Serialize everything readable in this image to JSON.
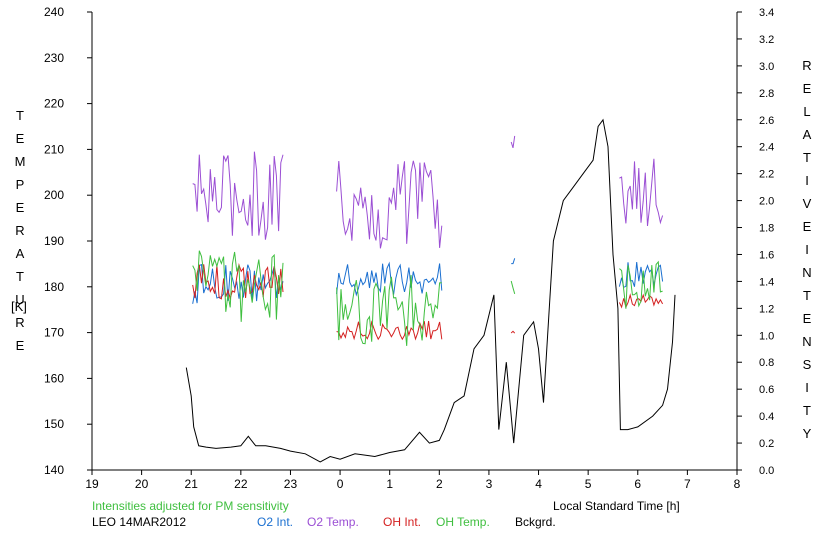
{
  "chart_data": {
    "type": "line",
    "left_axis_label": "TEMPERATURE",
    "left_axis_unit": "[K]",
    "right_axis_label": "RELATIVE INTENSITY",
    "x_axis_label": "Local Standard Time [h]",
    "note": "Intensities adjusted for PM sensitivity",
    "station_date": "LEO 14MAR2012",
    "x_ticks": [
      "19",
      "20",
      "21",
      "22",
      "23",
      "0",
      "1",
      "2",
      "3",
      "4",
      "5",
      "6",
      "7",
      "8"
    ],
    "y_left_ticks": [
      140,
      150,
      160,
      170,
      180,
      190,
      200,
      210,
      220,
      230,
      240
    ],
    "y_right_ticks": [
      "0.0",
      "0.2",
      "0.4",
      "0.6",
      "0.8",
      "1.0",
      "1.2",
      "1.4",
      "1.6",
      "1.8",
      "2.0",
      "2.2",
      "2.4",
      "2.6",
      "2.8",
      "3.0",
      "3.2",
      "3.4"
    ],
    "xlim": [
      19,
      32
    ],
    "ylim_left": [
      140,
      240
    ],
    "ylim_right": [
      0.0,
      3.4
    ],
    "grid": false,
    "legend": [
      {
        "name": "O2 Int.",
        "color": "#1a6fd0"
      },
      {
        "name": "O2 Temp.",
        "color": "#9b4fd4"
      },
      {
        "name": "OH Int.",
        "color": "#d42020"
      },
      {
        "name": "OH Temp.",
        "color": "#3fbf3f"
      },
      {
        "name": "Bckgrd.",
        "color": "#000000"
      }
    ],
    "series": [
      {
        "name": "O2 Temp.",
        "axis": "left",
        "color": "#9b4fd4",
        "segments": [
          {
            "x_start": 21.03,
            "x_end": 22.85,
            "level": 200,
            "spread": 10
          },
          {
            "x_start": 23.93,
            "x_end": 26.05,
            "level": 198,
            "spread": 10
          },
          {
            "x_start": 27.45,
            "x_end": 27.52,
            "level": 211,
            "spread": 2
          },
          {
            "x_start": 29.63,
            "x_end": 30.5,
            "level": 201,
            "spread": 8
          }
        ]
      },
      {
        "name": "O2 Int.",
        "axis": "right",
        "color": "#1a6fd0",
        "segments": [
          {
            "x_start": 21.03,
            "x_end": 22.85,
            "level": 1.38,
            "spread": 0.15
          },
          {
            "x_start": 23.93,
            "x_end": 26.05,
            "level": 1.42,
            "spread": 0.12
          },
          {
            "x_start": 27.45,
            "x_end": 27.52,
            "level": 1.56,
            "spread": 0.03
          },
          {
            "x_start": 29.63,
            "x_end": 30.5,
            "level": 1.45,
            "spread": 0.1
          }
        ]
      },
      {
        "name": "OH Int.",
        "axis": "right",
        "color": "#d42020",
        "segments": [
          {
            "x_start": 21.03,
            "x_end": 22.85,
            "level": 1.4,
            "spread": 0.13
          },
          {
            "x_start": 23.93,
            "x_end": 26.05,
            "level": 1.04,
            "spread": 0.07
          },
          {
            "x_start": 27.45,
            "x_end": 27.52,
            "level": 1.02,
            "spread": 0.02
          },
          {
            "x_start": 29.63,
            "x_end": 30.5,
            "level": 1.25,
            "spread": 0.05
          }
        ]
      },
      {
        "name": "OH Temp.",
        "axis": "left",
        "color": "#3fbf3f",
        "segments": [
          {
            "x_start": 21.03,
            "x_end": 22.85,
            "level": 180,
            "spread": 8
          },
          {
            "x_start": 23.93,
            "x_end": 26.05,
            "level": 175,
            "spread": 8
          },
          {
            "x_start": 27.45,
            "x_end": 27.52,
            "level": 180,
            "spread": 2
          },
          {
            "x_start": 29.63,
            "x_end": 30.5,
            "level": 180,
            "spread": 6
          }
        ]
      },
      {
        "name": "Bckgrd.",
        "axis": "right",
        "color": "#000000",
        "points": [
          [
            20.9,
            0.76
          ],
          [
            21.0,
            0.55
          ],
          [
            21.05,
            0.32
          ],
          [
            21.15,
            0.18
          ],
          [
            21.3,
            0.17
          ],
          [
            21.5,
            0.16
          ],
          [
            21.8,
            0.17
          ],
          [
            22.0,
            0.18
          ],
          [
            22.15,
            0.25
          ],
          [
            22.3,
            0.18
          ],
          [
            22.5,
            0.18
          ],
          [
            22.8,
            0.16
          ],
          [
            23.0,
            0.14
          ],
          [
            23.3,
            0.12
          ],
          [
            23.6,
            0.06
          ],
          [
            23.8,
            0.1
          ],
          [
            24.0,
            0.08
          ],
          [
            24.3,
            0.12
          ],
          [
            24.7,
            0.1
          ],
          [
            25.0,
            0.13
          ],
          [
            25.3,
            0.15
          ],
          [
            25.6,
            0.28
          ],
          [
            25.8,
            0.2
          ],
          [
            26.0,
            0.22
          ],
          [
            26.1,
            0.3
          ],
          [
            26.3,
            0.5
          ],
          [
            26.5,
            0.55
          ],
          [
            26.7,
            0.9
          ],
          [
            26.9,
            1.0
          ],
          [
            27.1,
            1.3
          ],
          [
            27.2,
            0.3
          ],
          [
            27.35,
            0.8
          ],
          [
            27.5,
            0.2
          ],
          [
            27.7,
            1.0
          ],
          [
            27.9,
            1.1
          ],
          [
            28.0,
            0.9
          ],
          [
            28.1,
            0.5
          ],
          [
            28.3,
            1.7
          ],
          [
            28.5,
            2.0
          ],
          [
            28.7,
            2.1
          ],
          [
            28.9,
            2.2
          ],
          [
            29.1,
            2.3
          ],
          [
            29.2,
            2.55
          ],
          [
            29.3,
            2.6
          ],
          [
            29.4,
            2.4
          ],
          [
            29.5,
            1.6
          ],
          [
            29.6,
            1.2
          ],
          [
            29.65,
            0.3
          ],
          [
            29.8,
            0.3
          ],
          [
            30.0,
            0.32
          ],
          [
            30.3,
            0.4
          ],
          [
            30.5,
            0.48
          ],
          [
            30.6,
            0.6
          ],
          [
            30.7,
            0.95
          ],
          [
            30.75,
            1.3
          ]
        ]
      }
    ]
  }
}
